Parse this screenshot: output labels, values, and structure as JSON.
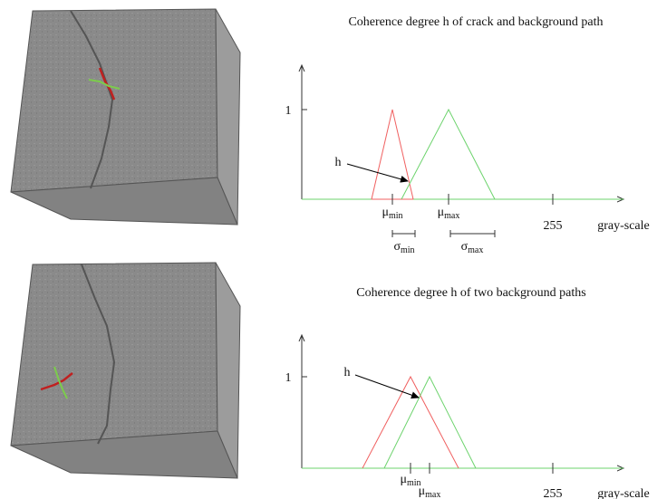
{
  "plots": [
    {
      "title": "Coherence degree h of crack and background path",
      "one": "1",
      "h": "h",
      "mu_min": {
        "symbol": "μ",
        "sub": "min"
      },
      "mu_max": {
        "symbol": "μ",
        "sub": "max"
      },
      "sigma_min": {
        "symbol": "σ",
        "sub": "min"
      },
      "sigma_max": {
        "symbol": "σ",
        "sub": "max"
      },
      "tick_255": "255",
      "axis_label": "gray-scale"
    },
    {
      "title": "Coherence degree h of two background paths",
      "one": "1",
      "h": "h",
      "mu_min": {
        "symbol": "μ",
        "sub": "min"
      },
      "mu_max": {
        "symbol": "μ",
        "sub": "max"
      },
      "tick_255": "255",
      "axis_label": "gray-scale"
    }
  ]
}
